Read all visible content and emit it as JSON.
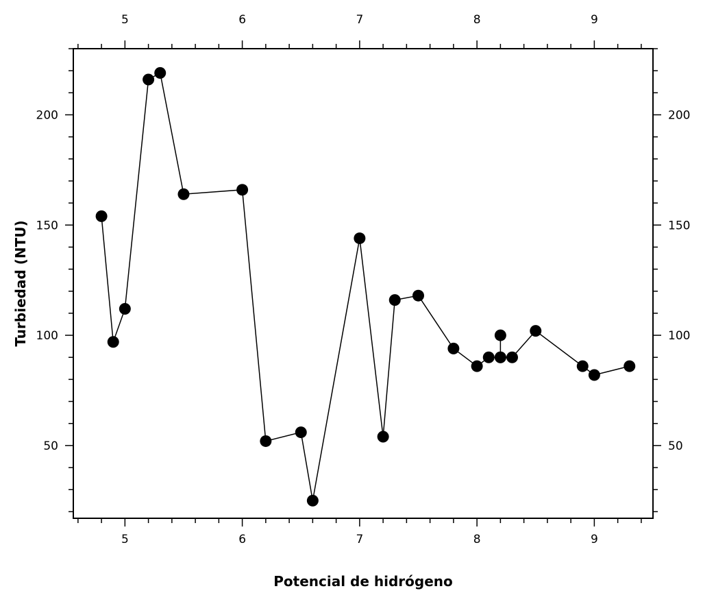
{
  "chart_data": {
    "type": "scatter",
    "title": "",
    "xlabel": "Potencial de hidrógeno",
    "ylabel": "Turbiedad (NTU)",
    "xlim": [
      4.56,
      9.5
    ],
    "ylim": [
      17,
      230
    ],
    "x_ticks": [
      5,
      6,
      7,
      8,
      9
    ],
    "y_ticks": [
      50,
      100,
      150,
      200
    ],
    "grid": false,
    "legend": "none",
    "marker_color": "#000000",
    "series": [
      {
        "x": [
          4.8,
          4.9,
          5.0,
          5.2,
          5.3,
          5.5,
          6.0,
          6.2,
          6.5,
          6.6,
          7.0,
          7.2,
          7.3,
          7.5,
          7.8,
          8.0,
          8.1,
          8.2,
          8.2,
          8.2,
          8.3,
          8.5,
          8.9,
          9.0,
          9.3
        ],
        "y": [
          154,
          97,
          112,
          216,
          219,
          164,
          166,
          52,
          56,
          25,
          144,
          54,
          116,
          118,
          94,
          86,
          90,
          90,
          100,
          90,
          90,
          102,
          86,
          82,
          86
        ]
      }
    ]
  }
}
